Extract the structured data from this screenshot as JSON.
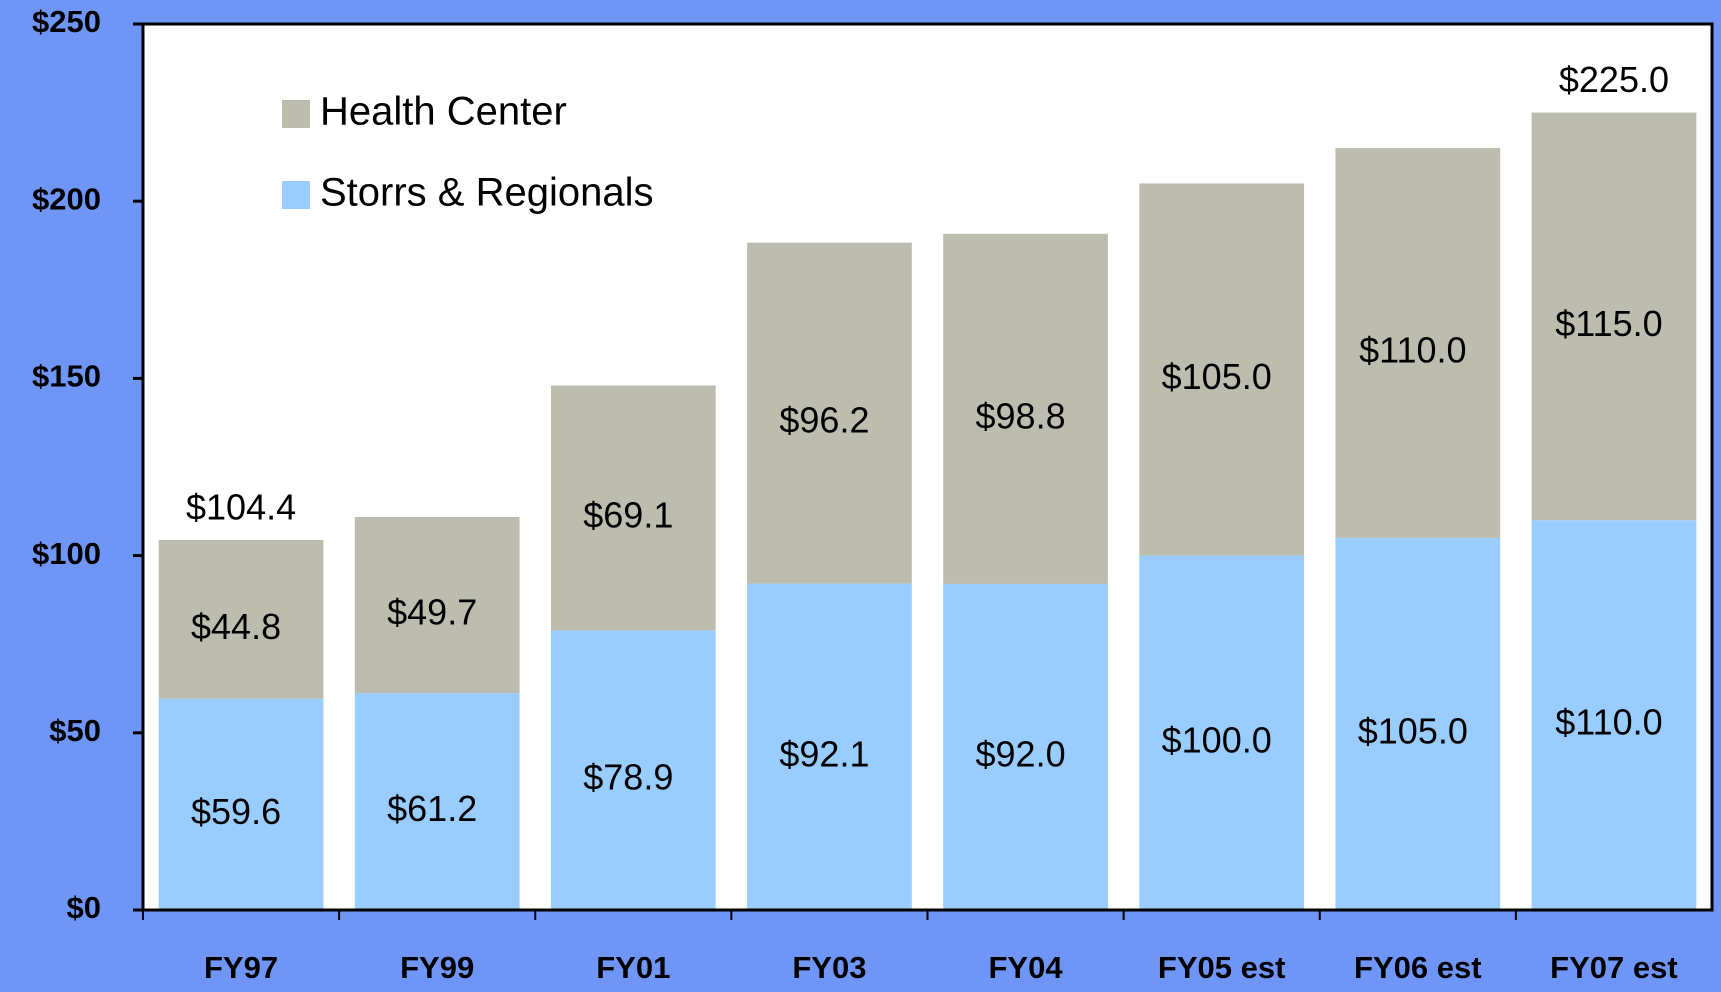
{
  "chart_data": {
    "type": "stacked_bar",
    "categories": [
      "FY97",
      "FY99",
      "FY01",
      "FY03",
      "FY04",
      "FY05 est",
      "FY06 est",
      "FY07 est"
    ],
    "series": [
      {
        "name": "Storrs & Regionals",
        "color": "#99ccff",
        "values": [
          59.6,
          61.2,
          78.9,
          92.1,
          92.0,
          100.0,
          105.0,
          110.0
        ],
        "value_labels": [
          "$59.6",
          "$61.2",
          "$78.9",
          "$92.1",
          "$92.0",
          "$100.0",
          "$105.0",
          "$110.0"
        ]
      },
      {
        "name": "Health Center",
        "color": "#bdbdaf",
        "values": [
          44.8,
          49.7,
          69.1,
          96.2,
          98.8,
          105.0,
          110.0,
          115.0
        ],
        "value_labels": [
          "$44.8",
          "$49.7",
          "$69.1",
          "$96.2",
          "$98.8",
          "$105.0",
          "$110.0",
          "$115.0"
        ]
      }
    ],
    "total_labels": [
      "$104.4",
      null,
      null,
      null,
      null,
      null,
      null,
      "$225.0"
    ],
    "ylim": [
      0,
      250
    ],
    "yticks": [
      {
        "value": 0,
        "label": "$0"
      },
      {
        "value": 50,
        "label": "$50"
      },
      {
        "value": 100,
        "label": "$100"
      },
      {
        "value": 150,
        "label": "$150"
      },
      {
        "value": 200,
        "label": "$200"
      },
      {
        "value": 250,
        "label": "$250"
      }
    ],
    "legend": "upper left"
  }
}
